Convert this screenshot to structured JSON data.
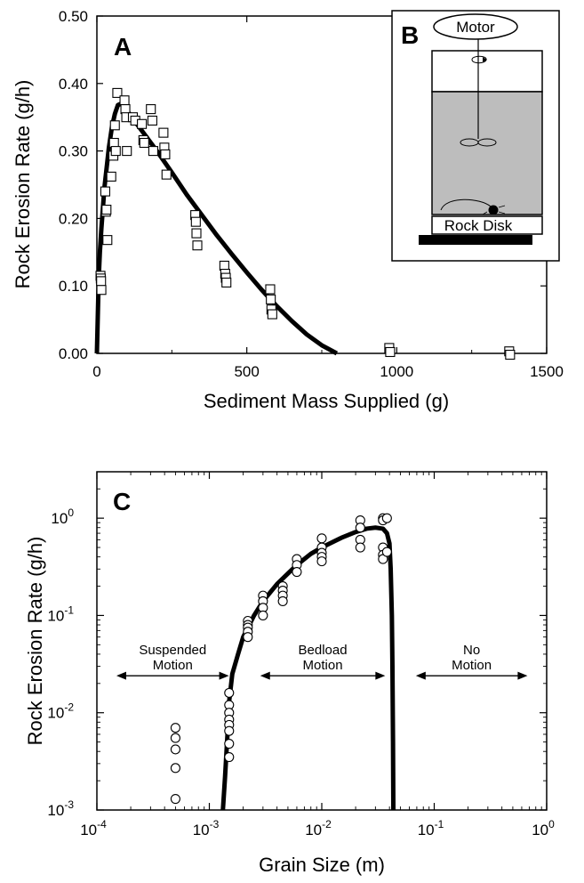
{
  "chart_data": [
    {
      "panel": "A",
      "type": "scatter",
      "xlabel": "Sediment Mass Supplied (g)",
      "ylabel": "Rock Erosion Rate (g/h)",
      "xlim": [
        0,
        1500
      ],
      "ylim": [
        0,
        0.5
      ],
      "xticks": [
        "0",
        "500",
        "1000",
        "1500"
      ],
      "yticks": [
        "0.00",
        "0.10",
        "0.20",
        "0.30",
        "0.40",
        "0.50"
      ],
      "marker": "square",
      "series": [
        {
          "kind": "points",
          "x": [
            12,
            13,
            14,
            15,
            28,
            30,
            32,
            35,
            48,
            55,
            57,
            60,
            63,
            68,
            92,
            95,
            98,
            100,
            120,
            128,
            150,
            155,
            158,
            180,
            185,
            188,
            222,
            225,
            228,
            232,
            328,
            330,
            332,
            335,
            425,
            428,
            430,
            432,
            578,
            580,
            582,
            585,
            975,
            978,
            1375,
            1378
          ],
          "y": [
            0.115,
            0.111,
            0.107,
            0.094,
            0.24,
            0.21,
            0.213,
            0.168,
            0.262,
            0.293,
            0.312,
            0.338,
            0.3,
            0.386,
            0.375,
            0.362,
            0.35,
            0.3,
            0.35,
            0.345,
            0.34,
            0.316,
            0.312,
            0.362,
            0.345,
            0.3,
            0.327,
            0.305,
            0.295,
            0.265,
            0.205,
            0.195,
            0.178,
            0.16,
            0.13,
            0.118,
            0.112,
            0.105,
            0.095,
            0.08,
            0.065,
            0.058,
            0.008,
            0.002,
            0.003,
            -0.002
          ]
        },
        {
          "kind": "curve",
          "x": [
            0,
            3,
            6,
            10,
            15,
            20,
            25,
            30,
            40,
            50,
            60,
            70,
            80,
            90,
            100,
            120,
            150,
            200,
            250,
            300,
            350,
            400,
            450,
            500,
            550,
            600,
            650,
            700,
            750,
            800
          ],
          "y": [
            0.0,
            0.055,
            0.11,
            0.15,
            0.185,
            0.215,
            0.245,
            0.265,
            0.305,
            0.335,
            0.355,
            0.368,
            0.37,
            0.366,
            0.36,
            0.348,
            0.33,
            0.3,
            0.268,
            0.235,
            0.205,
            0.175,
            0.147,
            0.12,
            0.094,
            0.07,
            0.048,
            0.028,
            0.012,
            0.0
          ]
        }
      ]
    },
    {
      "panel": "C",
      "type": "scatter",
      "xlabel": "Grain Size (m)",
      "ylabel": "Rock Erosion Rate (g/h)",
      "xscale": "log",
      "yscale": "log",
      "xlim": [
        0.0001,
        1
      ],
      "ylim": [
        0.001,
        3
      ],
      "xticks": [
        {
          "base": "10",
          "exp": "-4"
        },
        {
          "base": "10",
          "exp": "-3"
        },
        {
          "base": "10",
          "exp": "-2"
        },
        {
          "base": "10",
          "exp": "-1"
        },
        {
          "base": "10",
          "exp": "0"
        }
      ],
      "yticks": [
        {
          "base": "10",
          "exp": "-3"
        },
        {
          "base": "10",
          "exp": "-2"
        },
        {
          "base": "10",
          "exp": "-1"
        },
        {
          "base": "10",
          "exp": "0"
        }
      ],
      "marker": "circle",
      "series": [
        {
          "kind": "points",
          "x": [
            0.0005,
            0.0005,
            0.0005,
            0.0005,
            0.0005,
            0.0015,
            0.0015,
            0.0015,
            0.0015,
            0.0015,
            0.0015,
            0.0015,
            0.0015,
            0.0022,
            0.0022,
            0.0022,
            0.0022,
            0.0022,
            0.003,
            0.003,
            0.003,
            0.003,
            0.0045,
            0.0045,
            0.0045,
            0.0045,
            0.006,
            0.006,
            0.006,
            0.01,
            0.01,
            0.01,
            0.01,
            0.01,
            0.022,
            0.022,
            0.022,
            0.022,
            0.035,
            0.035,
            0.035,
            0.035,
            0.035,
            0.038,
            0.038
          ],
          "y": [
            0.007,
            0.0055,
            0.0042,
            0.0027,
            0.0013,
            0.016,
            0.012,
            0.01,
            0.0085,
            0.0075,
            0.0065,
            0.0048,
            0.0035,
            0.088,
            0.08,
            0.075,
            0.068,
            0.06,
            0.16,
            0.14,
            0.12,
            0.1,
            0.2,
            0.18,
            0.16,
            0.14,
            0.38,
            0.33,
            0.28,
            0.62,
            0.5,
            0.44,
            0.4,
            0.36,
            0.95,
            0.8,
            0.6,
            0.5,
            1.0,
            0.95,
            0.5,
            0.42,
            0.38,
            1.0,
            0.45
          ]
        },
        {
          "kind": "curve",
          "x": [
            0.00132,
            0.00138,
            0.00145,
            0.0015,
            0.0016,
            0.0018,
            0.002,
            0.0025,
            0.003,
            0.004,
            0.005,
            0.006,
            0.008,
            0.01,
            0.015,
            0.02,
            0.025,
            0.03,
            0.035,
            0.038,
            0.04,
            0.041,
            0.042,
            0.0425,
            0.043,
            0.0433
          ],
          "y": [
            0.001,
            0.0022,
            0.006,
            0.013,
            0.025,
            0.04,
            0.06,
            0.1,
            0.14,
            0.21,
            0.27,
            0.33,
            0.43,
            0.5,
            0.63,
            0.72,
            0.78,
            0.8,
            0.78,
            0.7,
            0.55,
            0.3,
            0.1,
            0.03,
            0.005,
            0.001
          ]
        }
      ],
      "regions": [
        {
          "label_lines": [
            "Suspended",
            "Motion"
          ],
          "x_from": 0.0001,
          "x_to": 0.00155
        },
        {
          "label_lines": [
            "Bedload",
            "Motion"
          ],
          "x_from": 0.0019,
          "x_to": 0.038
        },
        {
          "label_lines": [
            "No",
            "Motion"
          ],
          "x_from": 0.046,
          "x_to": 0.7
        }
      ]
    }
  ],
  "panels": {
    "a_letter": "A",
    "b_letter": "B",
    "c_letter": "C"
  },
  "inset": {
    "motor_label": "Motor",
    "rock_disk_label": "Rock Disk",
    "fluid_color": "#bdbdbd"
  },
  "colors": {
    "curve": "#000000",
    "marker_edge": "#000000",
    "marker_fill": "#ffffff"
  }
}
